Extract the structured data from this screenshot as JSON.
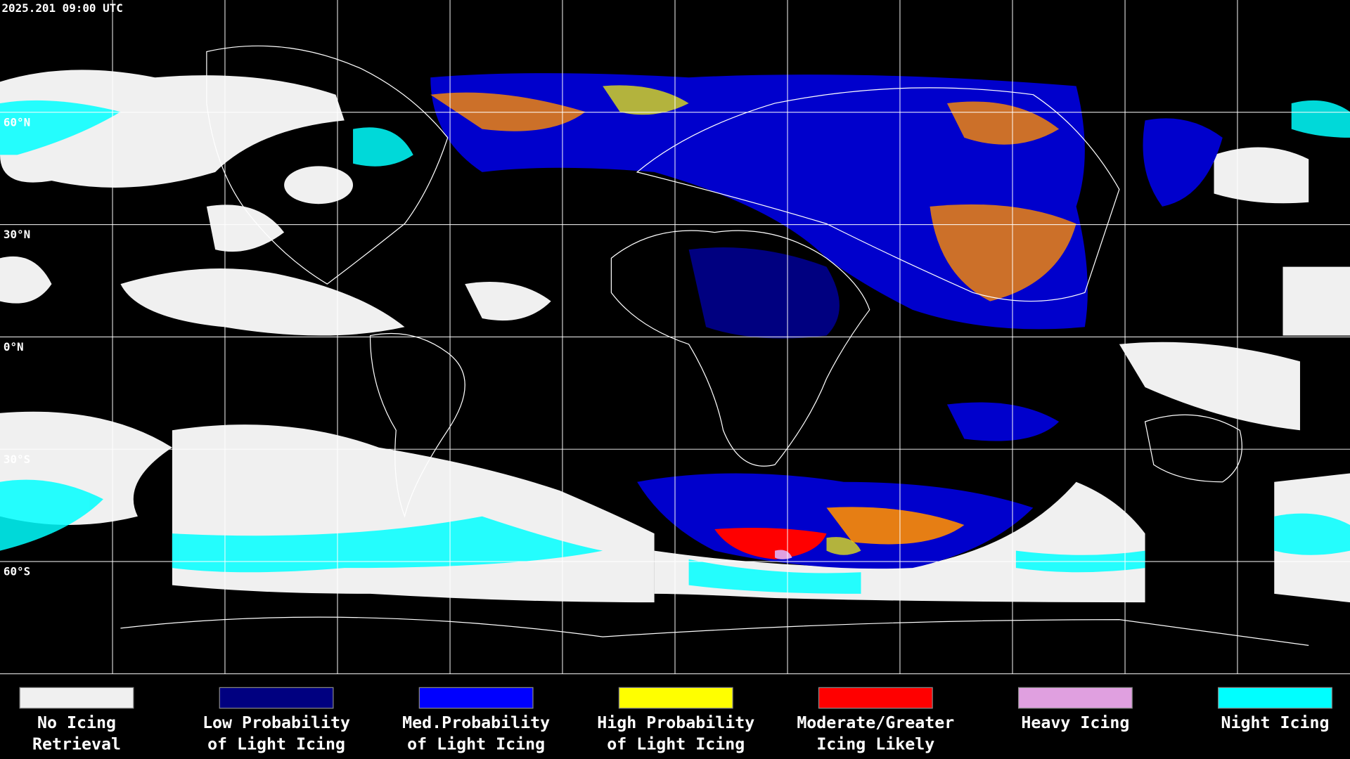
{
  "header": {
    "timestamp": "2025.201 09:00 UTC"
  },
  "map": {
    "lat_labels": [
      "60°N",
      "30°N",
      "0°N",
      "30°S",
      "60°S"
    ]
  },
  "legend": {
    "items": [
      {
        "lines": [
          "No Icing",
          "Retrieval"
        ],
        "color": "#f0f0f0"
      },
      {
        "lines": [
          "Low Probability",
          "of Light Icing"
        ],
        "color": "#000080"
      },
      {
        "lines": [
          "Med.Probability",
          "of Light Icing"
        ],
        "color": "#0000ff"
      },
      {
        "lines": [
          "High Probability",
          "of Light Icing"
        ],
        "color": "#ffff00"
      },
      {
        "lines": [
          "Moderate/Greater",
          "Icing Likely"
        ],
        "color": "#ff0000"
      },
      {
        "lines": [
          "Heavy Icing"
        ],
        "color": "#e0a0e0"
      },
      {
        "lines": [
          "Night Icing"
        ],
        "color": "#00ffff"
      }
    ]
  }
}
